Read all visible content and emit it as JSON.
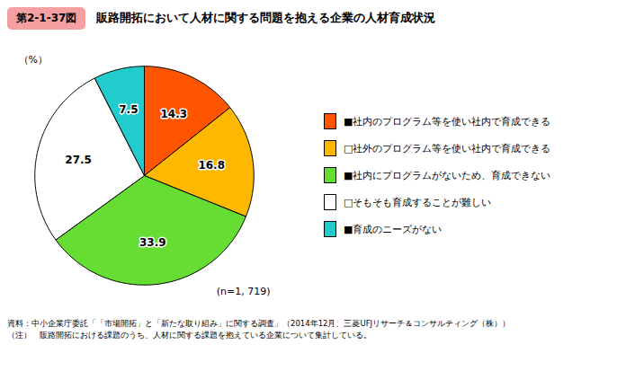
{
  "chart_data": {
    "type": "pie",
    "title": "第2-1-37図",
    "subtitle": "販路開拓において人材に関する問題を抱える企業の人材育成状況",
    "categories": [
      "■社内のプログラム等を使い社内で育成できる",
      "□社外のプログラム等を使い社内で育成できる",
      "■社内にプログラムがないため、育成できない",
      "□そもそも育成することが難しい",
      "■育成のニーズがない"
    ],
    "values": [
      14.3,
      16.8,
      33.9,
      27.5,
      7.5
    ],
    "colors": [
      "#FF5500",
      "#FFB800",
      "#66DD33",
      "#FFFFFF",
      "#22CCCC"
    ],
    "data_labels": true,
    "legend": "right",
    "annotations": [
      "（%）",
      "(n=1, 719)"
    ],
    "source": "資料：中小企業庁委託「「市場開拓」と「新たな取り組み」に関する調査」（2014年12月、三菱UFJリサーチ＆コンサルティング（株））",
    "note": "（注）　販路開拓における課題のうち、人材に関する課題を抱えている企業について集計している。"
  }
}
